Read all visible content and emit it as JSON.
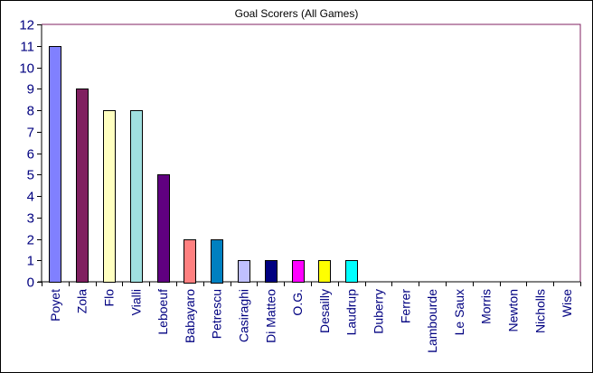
{
  "chart_data": {
    "type": "bar",
    "title": "Goal Scorers (All Games)",
    "xlabel": "",
    "ylabel": "",
    "ylim": [
      0,
      12
    ],
    "yticks": [
      0,
      1,
      2,
      3,
      4,
      5,
      6,
      7,
      8,
      9,
      10,
      11,
      12
    ],
    "grid": false,
    "legend": null,
    "categories": [
      "Poyet",
      "Zola",
      "Flo",
      "Vialli",
      "Leboeuf",
      "Babayaro",
      "Petrescu",
      "Casiraghi",
      "Di Matteo",
      "O.G.",
      "Desailly",
      "Laudrup",
      "Duberry",
      "Ferrer",
      "Lambourde",
      "Le Saux",
      "Morris",
      "Newton",
      "Nicholls",
      "Wise"
    ],
    "values": [
      11,
      9,
      8,
      8,
      5,
      2,
      2,
      1,
      1,
      1,
      1,
      1,
      0,
      0,
      0,
      0,
      0,
      0,
      0,
      0
    ],
    "colors": [
      "#8080ff",
      "#802060",
      "#ffffc0",
      "#a0e0e0",
      "#600080",
      "#ff8080",
      "#0080c0",
      "#c0c0ff",
      "#000080",
      "#ff00ff",
      "#ffff00",
      "#00ffff",
      "#000080",
      "#000080",
      "#000080",
      "#000080",
      "#000080",
      "#000080",
      "#000080",
      "#000080"
    ]
  },
  "style": {
    "plot_border_color": "#802060",
    "axis_color": "#000000",
    "label_color": "#000080"
  }
}
